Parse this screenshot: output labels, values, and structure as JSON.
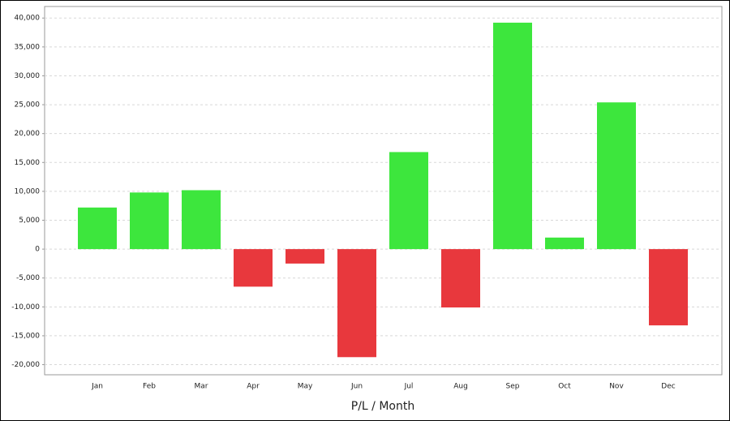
{
  "chart_data": {
    "type": "bar",
    "x_label": "P/L / Month",
    "categories": [
      "Jan",
      "Feb",
      "Mar",
      "Apr",
      "May",
      "Jun",
      "Jul",
      "Aug",
      "Sep",
      "Oct",
      "Nov",
      "Dec"
    ],
    "values": [
      7200,
      9800,
      10200,
      -6500,
      -2500,
      -18700,
      16800,
      -10100,
      39200,
      2000,
      25400,
      -13200
    ],
    "positive_color": "#3de63d",
    "negative_color": "#e8383d",
    "ylim": [
      -21750,
      42000
    ],
    "yticks": [
      {
        "value": -20000,
        "label": "-20,000"
      },
      {
        "value": -15000,
        "label": "-15,000"
      },
      {
        "value": -10000,
        "label": "-10,000"
      },
      {
        "value": -5000,
        "label": "-5,000"
      },
      0,
      {
        "value": 5000,
        "label": "5,000"
      },
      {
        "value": 10000,
        "label": "10,000"
      },
      {
        "value": 15000,
        "label": "15,000"
      },
      {
        "value": 20000,
        "label": "20,000"
      },
      {
        "value": 25000,
        "label": "25,000"
      },
      {
        "value": 30000,
        "label": "30,000"
      },
      {
        "value": 35000,
        "label": "35,000"
      },
      {
        "value": 40000,
        "label": "40,000"
      }
    ],
    "grid": true
  }
}
